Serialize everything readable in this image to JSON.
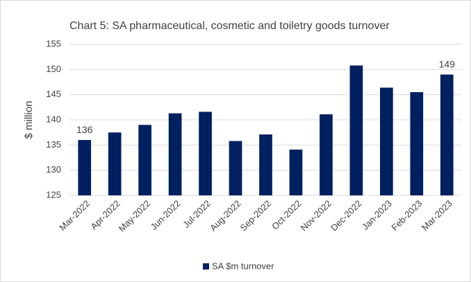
{
  "chart_data": {
    "type": "bar",
    "title": "Chart 5: SA pharmaceutical, cosmetic and toiletry goods turnover",
    "y_label": "$ million",
    "categories": [
      "Mar-2022",
      "Apr-2022",
      "May-2022",
      "Jun-2022",
      "Jul-2022",
      "Aug-2022",
      "Sep-2022",
      "Oct-2022",
      "Nov-2022",
      "Dec-2022",
      "Jan-2023",
      "Feb-2023",
      "Mar-2023"
    ],
    "series": [
      {
        "name": "SA $m turnover",
        "color": "#002060",
        "values": [
          136,
          137.5,
          139.0,
          141.3,
          141.6,
          135.8,
          137.1,
          134.1,
          141.1,
          150.8,
          146.4,
          145.5,
          149
        ],
        "value_labels": [
          "136",
          null,
          null,
          null,
          null,
          null,
          null,
          null,
          null,
          null,
          null,
          null,
          "149"
        ]
      }
    ],
    "ylim": [
      125,
      155
    ],
    "yticks": [
      125,
      130,
      135,
      140,
      145,
      150,
      155
    ],
    "grid": true,
    "legend": "bottom"
  }
}
